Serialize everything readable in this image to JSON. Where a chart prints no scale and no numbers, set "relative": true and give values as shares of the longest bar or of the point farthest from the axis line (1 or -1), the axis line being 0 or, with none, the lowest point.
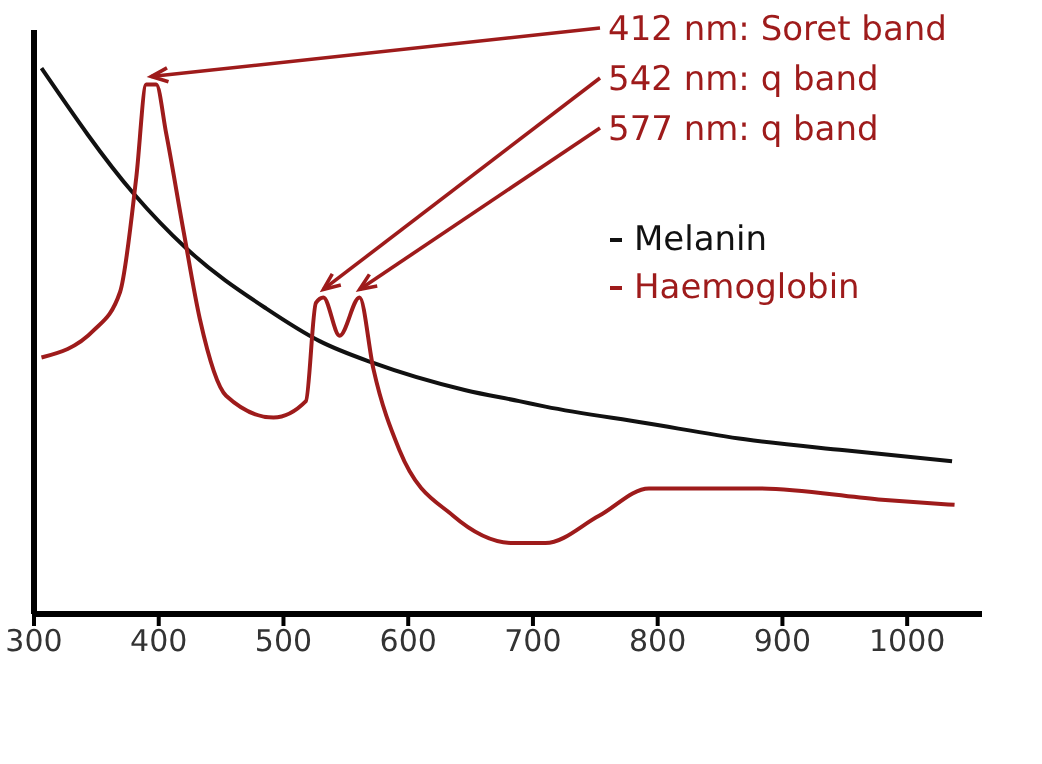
{
  "chart_data": {
    "type": "line",
    "relative": true,
    "xlim": [
      300,
      1060
    ],
    "xticks": [
      300,
      400,
      500,
      600,
      700,
      800,
      900,
      1000
    ],
    "legend": "top right",
    "marker": "none",
    "line_style": "solid",
    "annotations": [
      {
        "text": "412 nm: Soret band",
        "x": 394,
        "y": 0.97
      },
      {
        "text": "542 nm: q band",
        "x": 532,
        "y": 0.58
      },
      {
        "text": "577 nm: q band",
        "x": 561,
        "y": 0.58
      }
    ],
    "series": [
      {
        "name": "Melanin",
        "color": "#111111",
        "x": [
          306,
          380,
          422,
          486,
          529,
          572,
          646,
          689,
          710,
          790,
          870,
          950,
          1036
        ],
        "values": [
          1.0,
          0.77,
          0.67,
          0.56,
          0.5,
          0.46,
          0.41,
          0.39,
          0.38,
          0.35,
          0.32,
          0.3,
          0.28
        ]
      },
      {
        "name": "Haemoglobin",
        "color": "#9e1b1b",
        "x": [
          306,
          348,
          369,
          382,
          390,
          398,
          406,
          420,
          433,
          454,
          492,
          518,
          526,
          532,
          545,
          561,
          572,
          593,
          636,
          684,
          710,
          753,
          793,
          881,
          977,
          1038
        ],
        "values": [
          0.47,
          0.52,
          0.59,
          0.8,
          0.97,
          0.97,
          0.88,
          0.7,
          0.54,
          0.4,
          0.36,
          0.39,
          0.57,
          0.58,
          0.51,
          0.58,
          0.45,
          0.3,
          0.18,
          0.13,
          0.13,
          0.18,
          0.23,
          0.23,
          0.21,
          0.2
        ]
      }
    ]
  }
}
